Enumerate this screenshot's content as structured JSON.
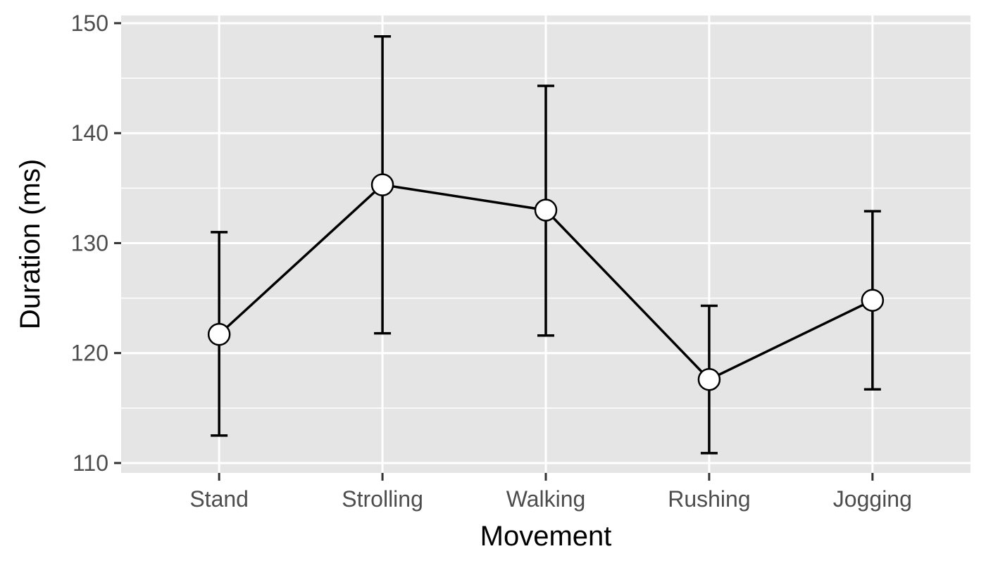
{
  "chart_data": {
    "type": "line",
    "title": "",
    "xlabel": "Movement",
    "ylabel": "Duration (ms)",
    "categories": [
      "Stand",
      "Strolling",
      "Walking",
      "Rushing",
      "Jogging"
    ],
    "series": [
      {
        "values": [
          121.7,
          135.3,
          133.0,
          117.6,
          124.8
        ],
        "error_lower": [
          112.5,
          121.8,
          121.6,
          110.9,
          116.7
        ],
        "error_upper": [
          131.0,
          148.8,
          144.3,
          124.3,
          132.9
        ]
      }
    ],
    "ylim": [
      109.1,
      150.7
    ],
    "yticks": [
      110,
      120,
      130,
      140,
      150
    ],
    "grid": true,
    "legend": "none",
    "colors": {
      "panel": "#e5e5e5",
      "grid": "#ffffff",
      "line": "#000000",
      "point_fill": "#ffffff"
    }
  }
}
